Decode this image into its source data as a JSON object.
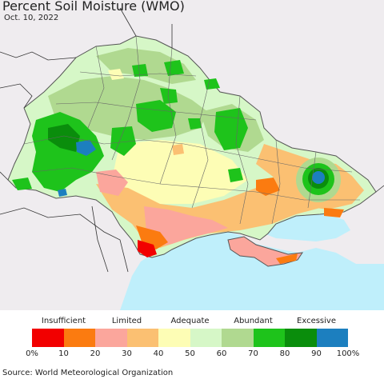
{
  "map": {
    "title": "Percent Soil Moisture (WMO)",
    "date": "Oct. 10, 2022",
    "colors": {
      "land_outside": "#efecef",
      "sea": "#bfeffb",
      "border": "#444444"
    }
  },
  "legend": {
    "categories": [
      {
        "label": "Insufficient",
        "at": 1
      },
      {
        "label": "Limited",
        "at": 3
      },
      {
        "label": "Adequate",
        "at": 5
      },
      {
        "label": "Abundant",
        "at": 7
      },
      {
        "label": "Excessive",
        "at": 9
      }
    ],
    "bins": [
      {
        "range": "0-10",
        "color": "#f20000"
      },
      {
        "range": "10-20",
        "color": "#fb7b10"
      },
      {
        "range": "20-30",
        "color": "#fba69c"
      },
      {
        "range": "30-40",
        "color": "#fbc072"
      },
      {
        "range": "40-50",
        "color": "#fdfdb5"
      },
      {
        "range": "50-60",
        "color": "#d6f7c7"
      },
      {
        "range": "60-70",
        "color": "#b0d990"
      },
      {
        "range": "70-80",
        "color": "#1ec31b"
      },
      {
        "range": "80-90",
        "color": "#0a8d0c"
      },
      {
        "range": "90-100",
        "color": "#1c7fbf"
      }
    ],
    "ticks": [
      "0%",
      "10",
      "20",
      "30",
      "40",
      "50",
      "60",
      "70",
      "80",
      "90",
      "100%"
    ]
  },
  "source": "Source: World Meteorological Organization"
}
